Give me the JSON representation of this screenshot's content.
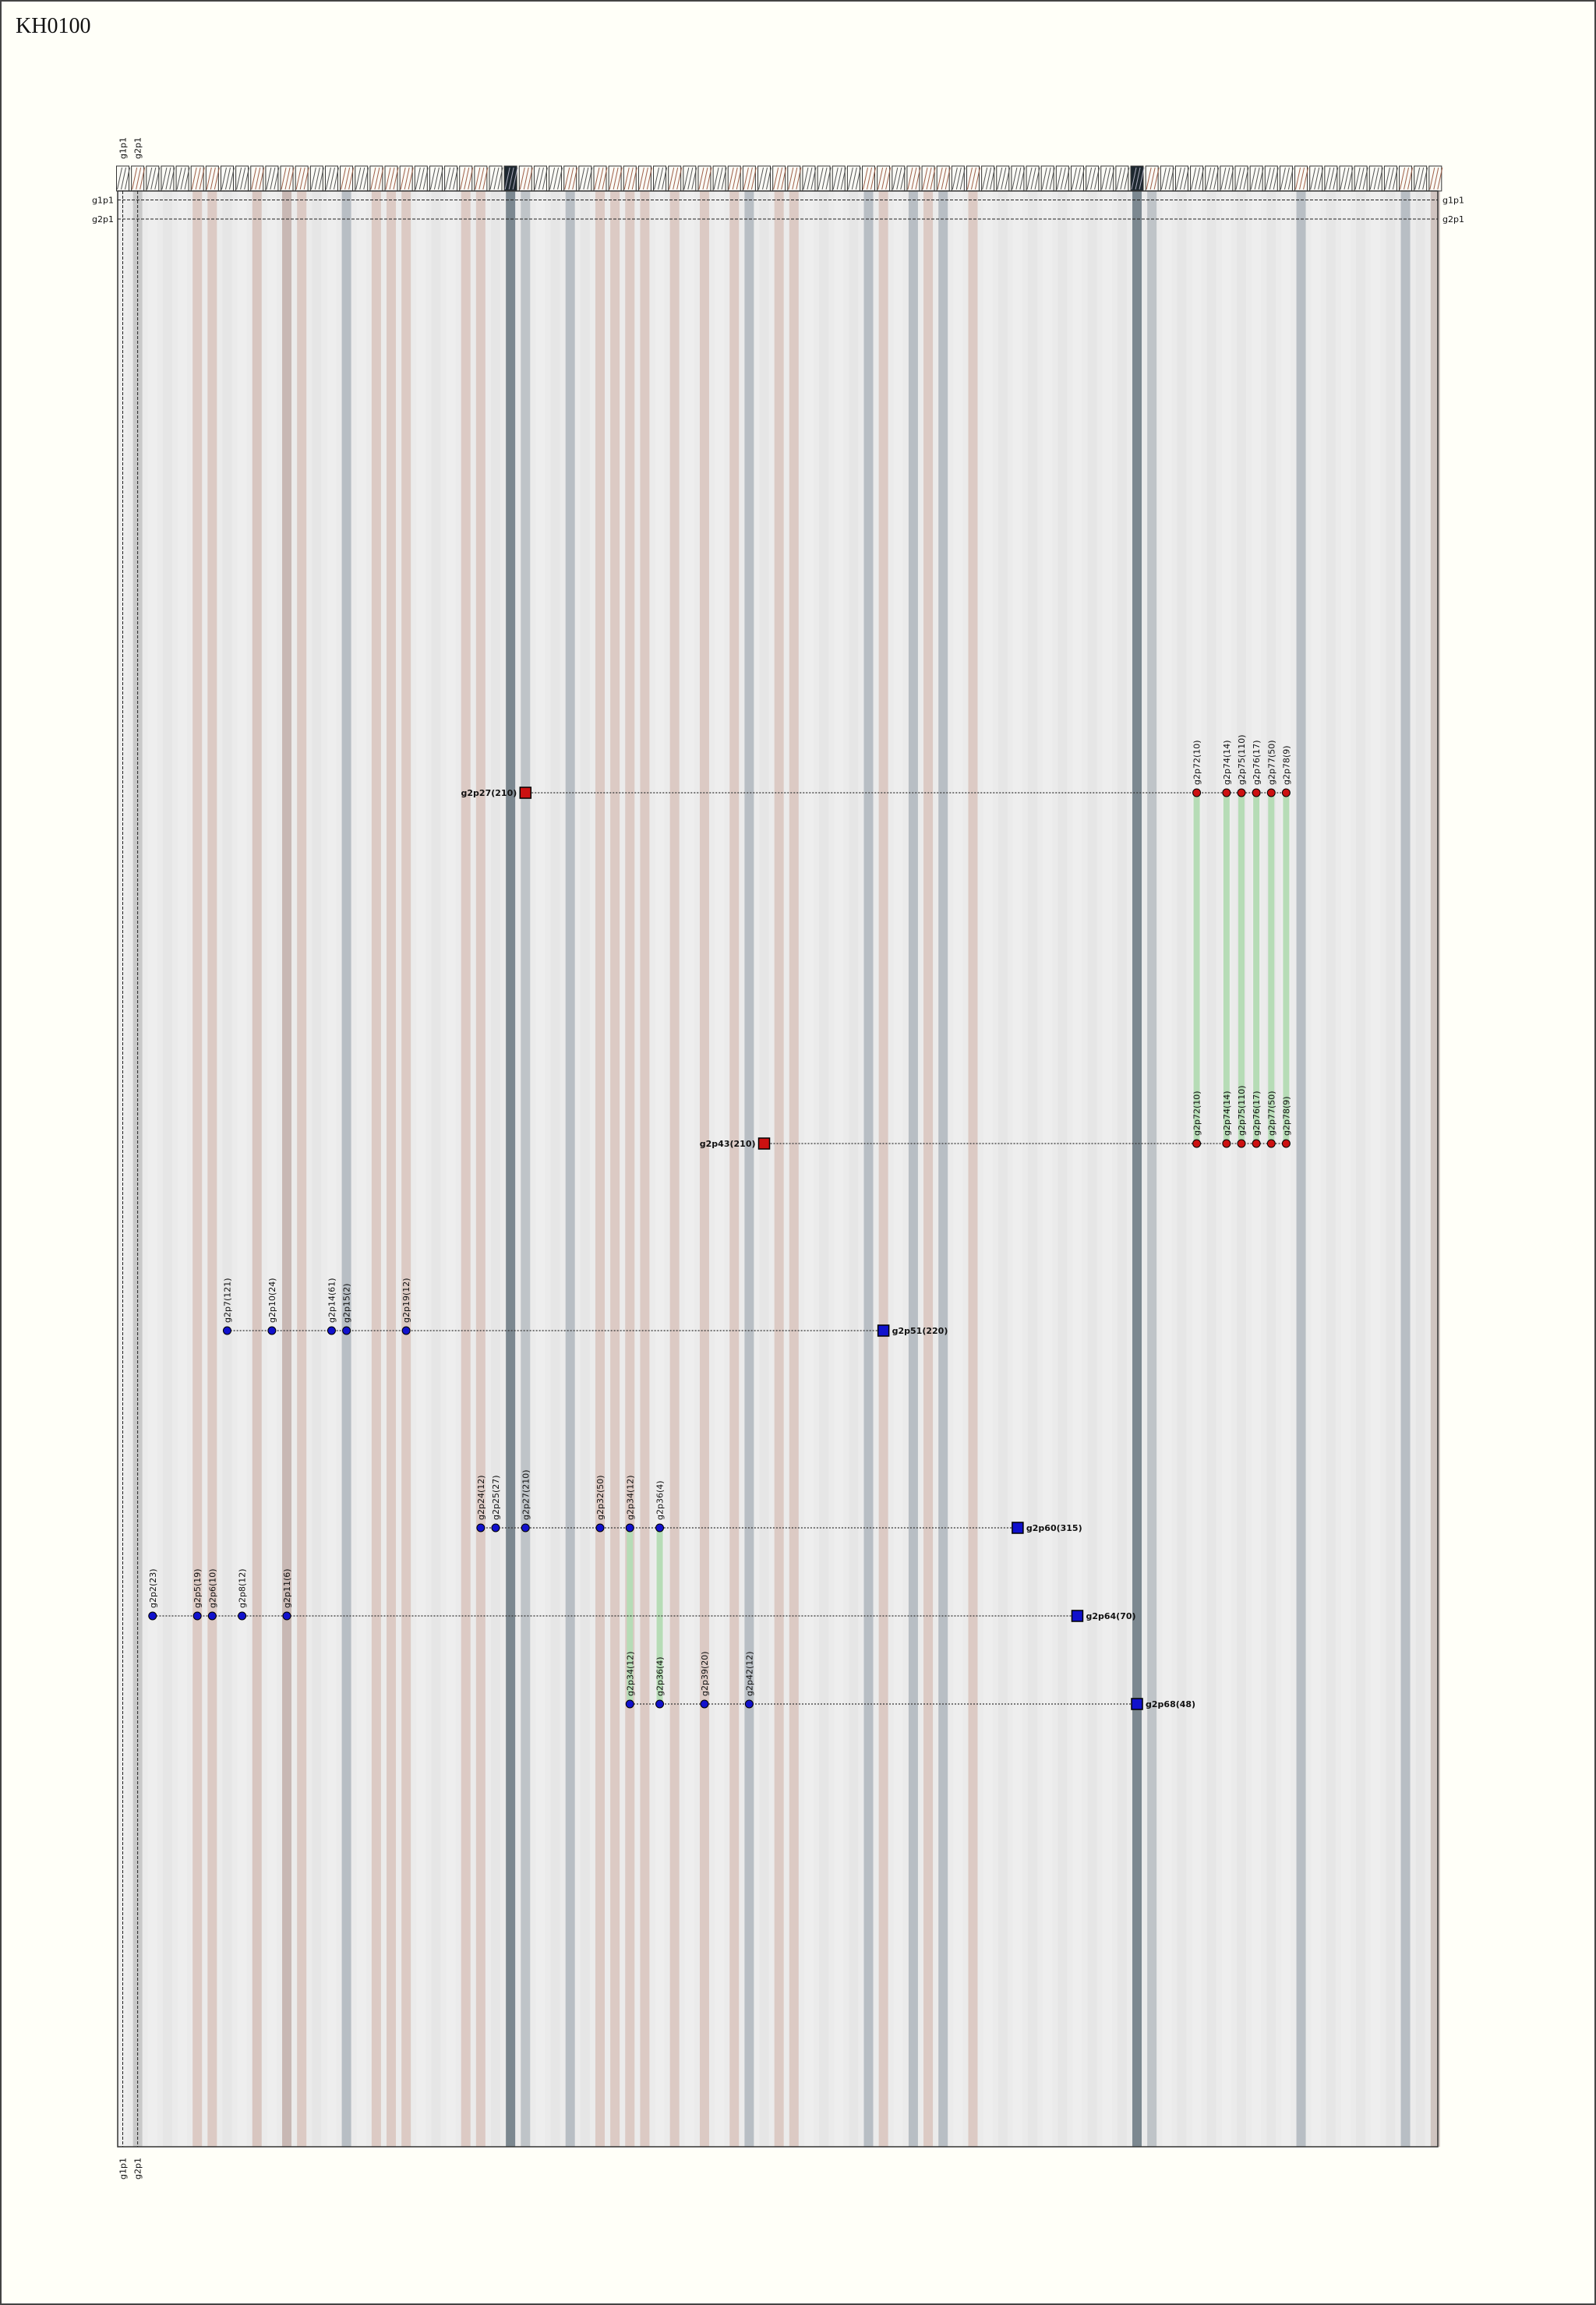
{
  "title": "KH0100",
  "column_labels": [
    "g1p1",
    "g2p1"
  ],
  "row_labels": [
    "g1p1",
    "g2p1"
  ],
  "paths": [
    {
      "sink": "g2p27(210)",
      "color": "#cc1111",
      "nodes": [
        "g2p72(10)",
        "g2p74(14)",
        "g2p75(110)",
        "g2p76(17)",
        "g2p77(50)",
        "g2p78(9)"
      ]
    },
    {
      "sink": "g2p43(210)",
      "color": "#cc1111",
      "nodes": [
        "g2p72(10)",
        "g2p74(14)",
        "g2p75(110)",
        "g2p76(17)",
        "g2p77(50)",
        "g2p78(9)"
      ]
    },
    {
      "sink": "g2p51(220)",
      "color": "#1111cc",
      "nodes": [
        "g2p7(121)",
        "g2p10(24)",
        "g2p14(61)",
        "g2p15(2)",
        "g2p19(12)"
      ]
    },
    {
      "sink": "g2p60(315)",
      "color": "#1111cc",
      "nodes": [
        "g2p24(12)",
        "g2p25(27)",
        "g2p27(210)",
        "g2p32(50)",
        "g2p34(12)",
        "g2p36(4)"
      ]
    },
    {
      "sink": "g2p64(70)",
      "color": "#1111cc",
      "nodes": [
        "g2p2(23)",
        "g2p5(19)",
        "g2p6(10)",
        "g2p8(12)",
        "g2p11(6)"
      ]
    },
    {
      "sink": "g2p68(48)",
      "color": "#1111cc",
      "nodes": [
        "g2p34(12)",
        "g2p36(4)",
        "g2p39(20)",
        "g2p42(12)"
      ]
    }
  ]
}
